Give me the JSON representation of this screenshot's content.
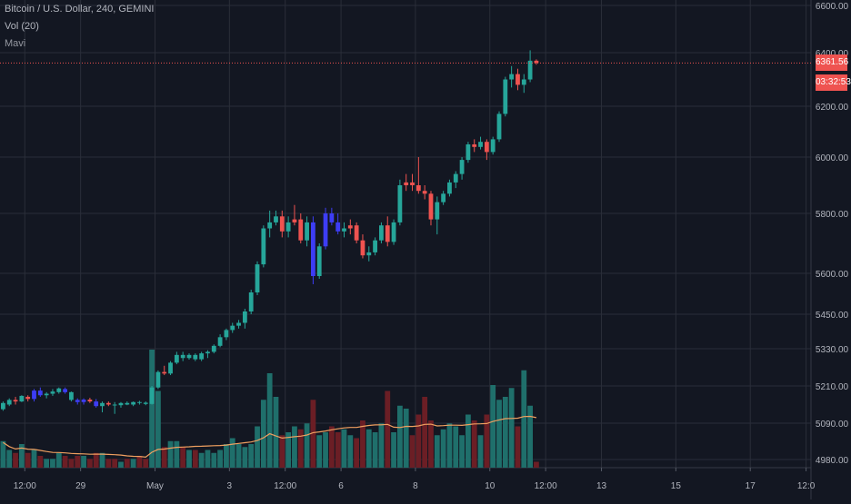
{
  "legend": {
    "symbol": "Bitcoin / U.S. Dollar, 240, GEMINI",
    "volume": "Vol (20)",
    "indicator": "Mavi"
  },
  "price_tag": {
    "last_price": "6361.56",
    "countdown": "03:32:53"
  },
  "colors": {
    "background": "#131722",
    "grid": "#2a2e39",
    "up": "#26a69a",
    "down": "#ef5350",
    "highlight": "#3d3df5",
    "vol_up": "#1f6f6b",
    "vol_down": "#6b1e25",
    "ma_line": "#f0a060",
    "price_line": "#ef5350",
    "axis_text": "#b2b5be"
  },
  "chart_data": {
    "type": "candlestick",
    "title": "Bitcoin / U.S. Dollar, 240, GEMINI",
    "y_axis_ticks": [
      4980,
      5090,
      5210,
      5330,
      5450,
      5600,
      5800,
      6000,
      6200,
      6400,
      6600
    ],
    "x_axis_ticks": [
      {
        "label": "12:00",
        "t": 3.5
      },
      {
        "label": "29",
        "t": 12.5
      },
      {
        "label": "May",
        "t": 24.5
      },
      {
        "label": "3",
        "t": 36.5
      },
      {
        "label": "12:00",
        "t": 45.5
      },
      {
        "label": "6",
        "t": 54.5
      },
      {
        "label": "8",
        "t": 66.5
      },
      {
        "label": "10",
        "t": 78.5
      },
      {
        "label": "12:00",
        "t": 87.5
      },
      {
        "label": "13",
        "t": 96.5
      },
      {
        "label": "15",
        "t": 108.5
      },
      {
        "label": "17",
        "t": 120.5
      },
      {
        "label": "12:0",
        "t": 129.5
      }
    ],
    "last_price": 6361.56,
    "grid": true,
    "candles": [
      [
        5135,
        5160,
        5130,
        5155,
        "up"
      ],
      [
        5150,
        5170,
        5145,
        5165,
        "up"
      ],
      [
        5165,
        5175,
        5150,
        5160,
        "down"
      ],
      [
        5160,
        5180,
        5158,
        5178,
        "up"
      ],
      [
        5175,
        5180,
        5160,
        5168,
        "down"
      ],
      [
        5168,
        5200,
        5160,
        5195,
        "blue"
      ],
      [
        5195,
        5205,
        5175,
        5180,
        "blue"
      ],
      [
        5180,
        5190,
        5170,
        5185,
        "up"
      ],
      [
        5185,
        5200,
        5178,
        5192,
        "up"
      ],
      [
        5190,
        5205,
        5185,
        5202,
        "up"
      ],
      [
        5200,
        5205,
        5185,
        5190,
        "blue"
      ],
      [
        5190,
        5192,
        5160,
        5165,
        "up"
      ],
      [
        5165,
        5170,
        5150,
        5158,
        "blue"
      ],
      [
        5158,
        5170,
        5150,
        5166,
        "blue"
      ],
      [
        5166,
        5172,
        5155,
        5160,
        "down"
      ],
      [
        5160,
        5168,
        5140,
        5145,
        "blue"
      ],
      [
        5145,
        5160,
        5125,
        5155,
        "up"
      ],
      [
        5155,
        5160,
        5145,
        5150,
        "down"
      ],
      [
        5150,
        5158,
        5120,
        5148,
        "up"
      ],
      [
        5148,
        5158,
        5140,
        5155,
        "up"
      ],
      [
        5155,
        5160,
        5148,
        5150,
        "up"
      ],
      [
        5150,
        5160,
        5145,
        5158,
        "up"
      ],
      [
        5158,
        5162,
        5150,
        5156,
        "up"
      ],
      [
        5156,
        5160,
        5148,
        5152,
        "up"
      ],
      [
        5152,
        5210,
        5150,
        5205,
        "up"
      ],
      [
        5205,
        5260,
        5200,
        5255,
        "up"
      ],
      [
        5255,
        5275,
        5245,
        5250,
        "down"
      ],
      [
        5250,
        5290,
        5245,
        5285,
        "up"
      ],
      [
        5285,
        5320,
        5280,
        5310,
        "up"
      ],
      [
        5310,
        5320,
        5290,
        5300,
        "up"
      ],
      [
        5300,
        5315,
        5295,
        5310,
        "up"
      ],
      [
        5310,
        5315,
        5290,
        5296,
        "up"
      ],
      [
        5296,
        5320,
        5290,
        5315,
        "up"
      ],
      [
        5315,
        5325,
        5300,
        5320,
        "up"
      ],
      [
        5320,
        5345,
        5315,
        5340,
        "up"
      ],
      [
        5340,
        5380,
        5335,
        5370,
        "up"
      ],
      [
        5370,
        5400,
        5360,
        5395,
        "up"
      ],
      [
        5395,
        5420,
        5385,
        5410,
        "up"
      ],
      [
        5410,
        5430,
        5400,
        5420,
        "up"
      ],
      [
        5420,
        5470,
        5400,
        5460,
        "up"
      ],
      [
        5460,
        5540,
        5450,
        5530,
        "up"
      ],
      [
        5530,
        5640,
        5520,
        5630,
        "up"
      ],
      [
        5630,
        5760,
        5620,
        5750,
        "up"
      ],
      [
        5750,
        5810,
        5720,
        5770,
        "up"
      ],
      [
        5770,
        5810,
        5760,
        5790,
        "up"
      ],
      [
        5790,
        5810,
        5720,
        5740,
        "down"
      ],
      [
        5740,
        5790,
        5720,
        5770,
        "up"
      ],
      [
        5770,
        5830,
        5760,
        5780,
        "down"
      ],
      [
        5780,
        5800,
        5700,
        5710,
        "down"
      ],
      [
        5710,
        5790,
        5690,
        5770,
        "up"
      ],
      [
        5770,
        5790,
        5560,
        5590,
        "blue"
      ],
      [
        5590,
        5700,
        5580,
        5690,
        "up"
      ],
      [
        5690,
        5820,
        5680,
        5800,
        "blue"
      ],
      [
        5800,
        5820,
        5760,
        5770,
        "blue"
      ],
      [
        5770,
        5800,
        5730,
        5740,
        "blue"
      ],
      [
        5740,
        5770,
        5720,
        5750,
        "up"
      ],
      [
        5750,
        5780,
        5730,
        5760,
        "down"
      ],
      [
        5760,
        5770,
        5700,
        5710,
        "down"
      ],
      [
        5710,
        5730,
        5650,
        5660,
        "down"
      ],
      [
        5660,
        5690,
        5640,
        5670,
        "up"
      ],
      [
        5670,
        5720,
        5660,
        5710,
        "up"
      ],
      [
        5710,
        5770,
        5700,
        5760,
        "up"
      ],
      [
        5760,
        5790,
        5690,
        5705,
        "down"
      ],
      [
        5705,
        5780,
        5695,
        5770,
        "up"
      ],
      [
        5770,
        5920,
        5760,
        5900,
        "up"
      ],
      [
        5900,
        5940,
        5880,
        5910,
        "down"
      ],
      [
        5910,
        5940,
        5880,
        5900,
        "down"
      ],
      [
        5900,
        6000,
        5870,
        5880,
        "down"
      ],
      [
        5880,
        5900,
        5850,
        5870,
        "down"
      ],
      [
        5870,
        5880,
        5760,
        5780,
        "down"
      ],
      [
        5780,
        5860,
        5730,
        5840,
        "up"
      ],
      [
        5840,
        5880,
        5830,
        5870,
        "up"
      ],
      [
        5870,
        5920,
        5860,
        5910,
        "up"
      ],
      [
        5910,
        5950,
        5890,
        5940,
        "up"
      ],
      [
        5940,
        6000,
        5920,
        5990,
        "up"
      ],
      [
        5990,
        6060,
        5980,
        6050,
        "up"
      ],
      [
        6050,
        6070,
        6020,
        6040,
        "down"
      ],
      [
        6040,
        6080,
        6030,
        6060,
        "up"
      ],
      [
        6060,
        6070,
        5990,
        6020,
        "down"
      ],
      [
        6020,
        6080,
        6010,
        6070,
        "up"
      ],
      [
        6070,
        6180,
        6060,
        6170,
        "up"
      ],
      [
        6170,
        6310,
        6160,
        6300,
        "up"
      ],
      [
        6300,
        6350,
        6270,
        6320,
        "up"
      ],
      [
        6320,
        6340,
        6260,
        6280,
        "down"
      ],
      [
        6280,
        6320,
        6250,
        6300,
        "up"
      ],
      [
        6300,
        6410,
        6290,
        6370,
        "up"
      ],
      [
        6370,
        6375,
        6355,
        6361.56,
        "down"
      ]
    ],
    "volume": [
      9,
      6,
      5,
      8,
      5,
      6,
      4,
      3,
      3,
      5,
      4,
      3,
      4,
      4,
      3,
      5,
      5,
      3,
      3,
      2,
      3,
      3,
      4,
      3,
      40,
      26,
      7,
      9,
      9,
      7,
      6,
      6,
      5,
      6,
      5,
      6,
      8,
      10,
      8,
      7,
      8,
      14,
      23,
      32,
      24,
      11,
      12,
      14,
      13,
      15,
      23,
      11,
      12,
      14,
      12,
      13,
      11,
      10,
      16,
      13,
      12,
      15,
      26,
      12,
      21,
      20,
      11,
      18,
      24,
      16,
      11,
      13,
      15,
      14,
      11,
      18,
      16,
      11,
      18,
      28,
      23,
      24,
      27,
      14,
      33,
      21,
      2
    ]
  }
}
